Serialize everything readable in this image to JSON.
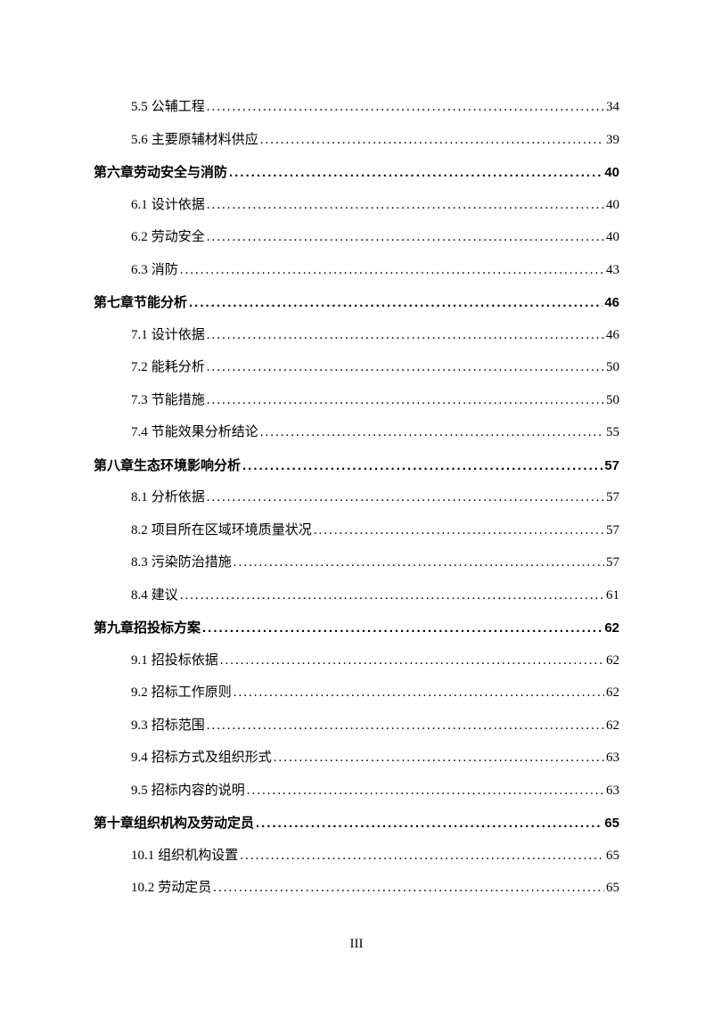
{
  "page_number": "III",
  "dots_fill": "............................................................................................................................",
  "entries": [
    {
      "type": "section",
      "num": "5.5",
      "title": "公辅工程",
      "page": "34"
    },
    {
      "type": "section",
      "num": "5.6",
      "title": "主要原辅材料供应",
      "page": "39"
    },
    {
      "type": "chapter",
      "num": "第六章",
      "title": "劳动安全与消防",
      "page": "40"
    },
    {
      "type": "section",
      "num": "6.1",
      "title": "设计依据",
      "page": "40"
    },
    {
      "type": "section",
      "num": "6.2",
      "title": "劳动安全",
      "page": "40"
    },
    {
      "type": "section",
      "num": "6.3",
      "title": "消防",
      "page": "43"
    },
    {
      "type": "chapter",
      "num": "第七章",
      "title": "节能分析",
      "page": "46"
    },
    {
      "type": "section",
      "num": "7.1",
      "title": "设计依据",
      "page": "46"
    },
    {
      "type": "section",
      "num": "7.2",
      "title": "能耗分析",
      "page": "50"
    },
    {
      "type": "section",
      "num": "7.3",
      "title": "节能措施",
      "page": "50"
    },
    {
      "type": "section",
      "num": "7.4",
      "title": "节能效果分析结论",
      "page": "55"
    },
    {
      "type": "chapter",
      "num": "第八章",
      "title": "生态环境影响分析",
      "page": "57"
    },
    {
      "type": "section",
      "num": "8.1",
      "title": "分析依据",
      "page": "57"
    },
    {
      "type": "section",
      "num": "8.2",
      "title": "项目所在区域环境质量状况",
      "page": "57"
    },
    {
      "type": "section",
      "num": "8.3",
      "title": "污染防治措施",
      "page": "57"
    },
    {
      "type": "section",
      "num": "8.4",
      "title": "建议",
      "page": "61"
    },
    {
      "type": "chapter",
      "num": "第九章",
      "title": "招投标方案",
      "page": "62"
    },
    {
      "type": "section",
      "num": "9.1",
      "title": "招投标依据",
      "page": "62"
    },
    {
      "type": "section",
      "num": "9.2",
      "title": "招标工作原则",
      "page": "62"
    },
    {
      "type": "section",
      "num": "9.3",
      "title": "招标范围",
      "page": "62"
    },
    {
      "type": "section",
      "num": "9.4",
      "title": "招标方式及组织形式",
      "page": "63"
    },
    {
      "type": "section",
      "num": "9.5",
      "title": "招标内容的说明",
      "page": "63"
    },
    {
      "type": "chapter",
      "num": "第十章",
      "title": "组织机构及劳动定员",
      "page": "65"
    },
    {
      "type": "section",
      "num": "10.1",
      "title": "组织机构设置",
      "page": "65"
    },
    {
      "type": "section",
      "num": "10.2",
      "title": "劳动定员",
      "page": "65"
    }
  ]
}
